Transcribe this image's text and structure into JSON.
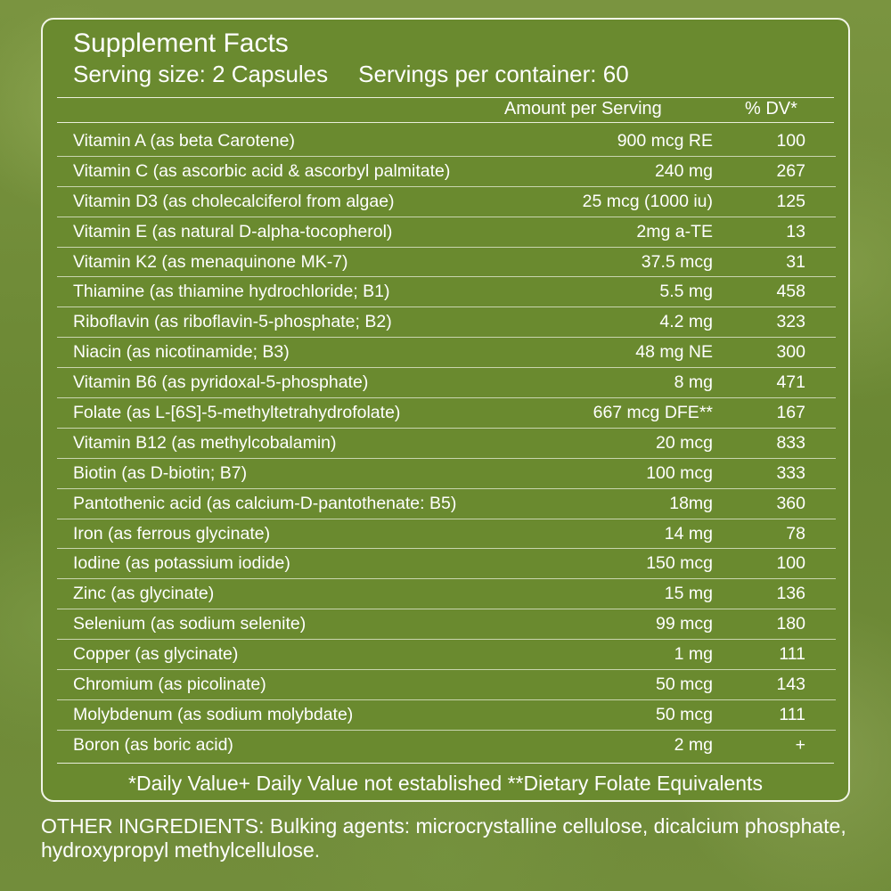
{
  "label": {
    "title": "Supplement Facts",
    "serving_size": "Serving size: 2 Capsules",
    "servings_per_container": "Servings per container: 60",
    "col_amount": "Amount per Serving",
    "col_dv": "% DV*",
    "rows": [
      {
        "name": "Vitamin A (as beta Carotene)",
        "amount": "900 mcg RE",
        "dv": "100"
      },
      {
        "name": "Vitamin C (as ascorbic acid & ascorbyl palmitate)",
        "amount": "240 mg",
        "dv": "267"
      },
      {
        "name": "Vitamin D3 (as cholecalciferol from algae)",
        "amount": "25 mcg (1000 iu)",
        "dv": "125"
      },
      {
        "name": "Vitamin E (as natural D-alpha-tocopherol)",
        "amount": "2mg a-TE",
        "dv": "13"
      },
      {
        "name": "Vitamin K2 (as menaquinone MK-7)",
        "amount": "37.5 mcg",
        "dv": "31"
      },
      {
        "name": "Thiamine (as thiamine hydrochloride; B1)",
        "amount": "5.5 mg",
        "dv": "458"
      },
      {
        "name": "Riboflavin (as riboflavin-5-phosphate; B2)",
        "amount": "4.2 mg",
        "dv": "323"
      },
      {
        "name": "Niacin (as nicotinamide; B3)",
        "amount": "48 mg NE",
        "dv": "300"
      },
      {
        "name": "Vitamin B6 (as pyridoxal-5-phosphate)",
        "amount": "8 mg",
        "dv": "471"
      },
      {
        "name": "Folate (as L-[6S]-5-methyltetrahydrofolate)",
        "amount": "667 mcg DFE**",
        "dv": "167"
      },
      {
        "name": "Vitamin B12 (as methylcobalamin)",
        "amount": "20 mcg",
        "dv": "833"
      },
      {
        "name": "Biotin (as D-biotin; B7)",
        "amount": "100 mcg",
        "dv": "333"
      },
      {
        "name": "Pantothenic acid (as calcium-D-pantothenate: B5)",
        "amount": "18mg",
        "dv": "360"
      },
      {
        "name": "Iron (as ferrous glycinate)",
        "amount": "14 mg",
        "dv": "78"
      },
      {
        "name": "Iodine (as potassium iodide)",
        "amount": "150 mcg",
        "dv": "100"
      },
      {
        "name": "Zinc (as glycinate)",
        "amount": "15 mg",
        "dv": "136"
      },
      {
        "name": "Selenium (as sodium selenite)",
        "amount": "99 mcg",
        "dv": "180"
      },
      {
        "name": "Copper (as glycinate)",
        "amount": "1 mg",
        "dv": "111"
      },
      {
        "name": "Chromium (as picolinate)",
        "amount": "50 mcg",
        "dv": "143"
      },
      {
        "name": "Molybdenum (as sodium molybdate)",
        "amount": "50 mcg",
        "dv": "111"
      },
      {
        "name": "Boron (as boric acid)",
        "amount": "2 mg",
        "dv": "+"
      }
    ],
    "footnote": "*Daily Value+ Daily Value not established **Dietary Folate Equivalents"
  },
  "other_ingredients": "OTHER INGREDIENTS: Bulking agents: microcrystalline cellulose, dicalcium phosphate, hydroxypropyl methylcellulose.",
  "colors": {
    "background": "#6e8b36",
    "panel": "#6a8a2f",
    "text": "#ffffff",
    "rule": "#e9eedb"
  }
}
